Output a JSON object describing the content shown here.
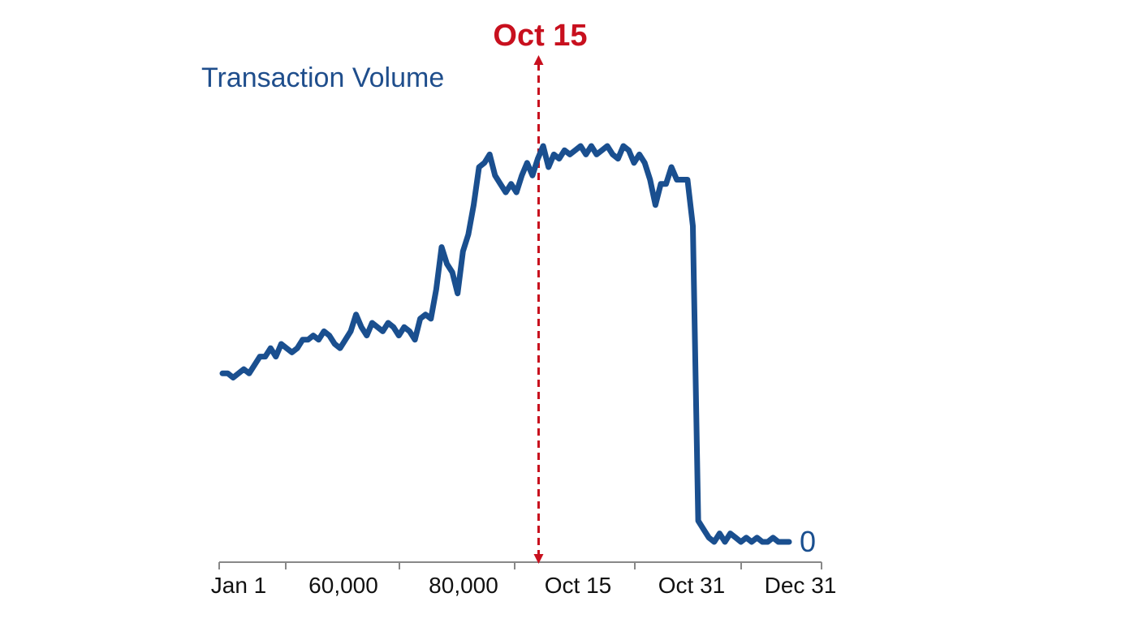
{
  "chart_data": {
    "type": "line",
    "title": "Transaction Volume",
    "xlabel": "",
    "ylabel": "",
    "x_tick_labels": [
      "Jan 1",
      "60,000",
      "80,000",
      "Oct 15",
      "Oct 31",
      "Dec 31"
    ],
    "marker": {
      "label": "Oct 15",
      "x_fraction": 0.558,
      "color": "#c8101e"
    },
    "end_label": "0",
    "series_color": "#1a4f8f",
    "grid": false,
    "series": [
      {
        "values": [
          40,
          40,
          39,
          40,
          41,
          40,
          42,
          44,
          44,
          46,
          44,
          47,
          46,
          45,
          46,
          48,
          48,
          49,
          48,
          50,
          49,
          47,
          46,
          48,
          50,
          54,
          51,
          49,
          52,
          51,
          50,
          52,
          51,
          49,
          51,
          50,
          48,
          53,
          54,
          53,
          60,
          70,
          66,
          64,
          59,
          69,
          73,
          80,
          89,
          90,
          92,
          87,
          85,
          83,
          85,
          83,
          87,
          90,
          87,
          91,
          94,
          89,
          92,
          91,
          93,
          92,
          93,
          94,
          92,
          94,
          92,
          93,
          94,
          92,
          91,
          94,
          93,
          90,
          92,
          90,
          86,
          80,
          85,
          85,
          89,
          86,
          86,
          86,
          75,
          5,
          3,
          1,
          0,
          2,
          0,
          2,
          1,
          0,
          1,
          0,
          1,
          0,
          0,
          1,
          0,
          0,
          0
        ]
      }
    ]
  }
}
